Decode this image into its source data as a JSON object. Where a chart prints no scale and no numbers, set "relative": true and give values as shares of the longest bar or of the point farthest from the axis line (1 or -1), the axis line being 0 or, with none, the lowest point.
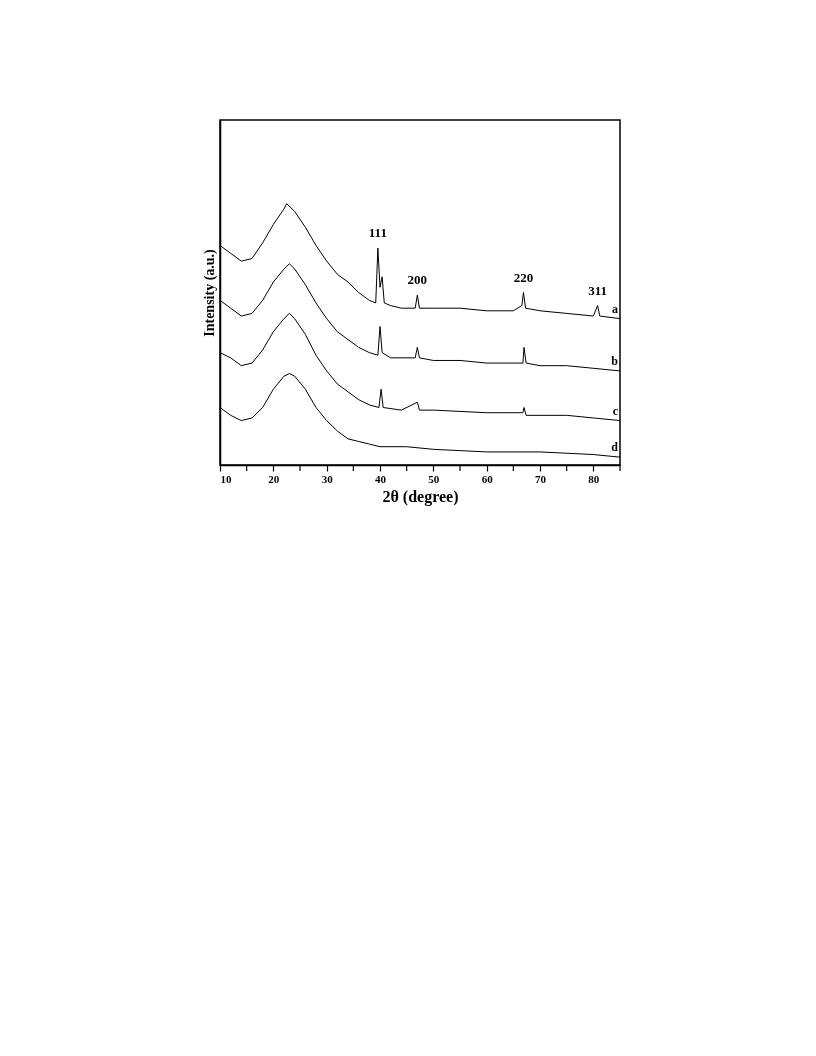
{
  "chart_data": {
    "type": "line",
    "xlabel": "2θ (degree)",
    "ylabel": "Intensity (a.u.)",
    "relative": true,
    "xlim": [
      10,
      85
    ],
    "xticks": [
      10,
      {
        "value": 15,
        "label": null
      },
      20,
      {
        "value": 25,
        "label": null
      },
      30,
      {
        "value": 35,
        "label": null
      },
      40,
      {
        "value": 45,
        "label": null
      },
      50,
      {
        "value": 55,
        "label": null
      },
      60,
      {
        "value": 65,
        "label": null
      },
      70,
      {
        "value": 75,
        "label": null
      },
      80,
      {
        "value": 85,
        "label": null
      }
    ],
    "grid": false,
    "legend": false,
    "marker": "none",
    "line_style": "solid",
    "series": [
      {
        "name": "a",
        "color": "#000000",
        "x": [
          10,
          12,
          14,
          16,
          18,
          20,
          22,
          22.5,
          24,
          26,
          28,
          30,
          32,
          34,
          36,
          38,
          39.2,
          39.6,
          40,
          40.4,
          40.8,
          42,
          44,
          46.6,
          47,
          47.4,
          50,
          55,
          60,
          65,
          66.6,
          66.9,
          67.3,
          70,
          75,
          80,
          80.8,
          81.2,
          85
        ],
        "values": [
          0.84,
          0.81,
          0.78,
          0.79,
          0.85,
          0.92,
          0.98,
          1.0,
          0.97,
          0.91,
          0.84,
          0.78,
          0.73,
          0.7,
          0.66,
          0.63,
          0.62,
          0.83,
          0.68,
          0.72,
          0.62,
          0.61,
          0.6,
          0.6,
          0.65,
          0.6,
          0.6,
          0.6,
          0.59,
          0.59,
          0.61,
          0.66,
          0.6,
          0.59,
          0.58,
          0.57,
          0.61,
          0.57,
          0.56
        ]
      },
      {
        "name": "b",
        "color": "#000000",
        "x": [
          10,
          12,
          14,
          16,
          18,
          20,
          22,
          23,
          24,
          26,
          28,
          30,
          32,
          34,
          36,
          38,
          39.6,
          40,
          40.4,
          42,
          46.6,
          47,
          47.4,
          50,
          55,
          60,
          65,
          66.8,
          67,
          67.4,
          70,
          75,
          80,
          85
        ],
        "values": [
          0.63,
          0.6,
          0.57,
          0.58,
          0.63,
          0.7,
          0.75,
          0.77,
          0.75,
          0.69,
          0.62,
          0.56,
          0.51,
          0.48,
          0.45,
          0.43,
          0.42,
          0.53,
          0.43,
          0.41,
          0.41,
          0.45,
          0.41,
          0.4,
          0.4,
          0.39,
          0.39,
          0.39,
          0.45,
          0.39,
          0.38,
          0.38,
          0.37,
          0.36
        ]
      },
      {
        "name": "c",
        "color": "#000000",
        "x": [
          10,
          12,
          14,
          16,
          18,
          20,
          22,
          23,
          24,
          26,
          28,
          30,
          32,
          34,
          36,
          38,
          39.8,
          40.2,
          40.6,
          44,
          47,
          47.4,
          50,
          60,
          66.8,
          67,
          67.4,
          70,
          75,
          80,
          85
        ],
        "values": [
          0.43,
          0.41,
          0.38,
          0.39,
          0.44,
          0.51,
          0.56,
          0.58,
          0.56,
          0.5,
          0.42,
          0.36,
          0.31,
          0.28,
          0.25,
          0.23,
          0.22,
          0.29,
          0.22,
          0.21,
          0.24,
          0.21,
          0.21,
          0.2,
          0.2,
          0.22,
          0.19,
          0.19,
          0.19,
          0.18,
          0.17
        ]
      },
      {
        "name": "d",
        "color": "#000000",
        "x": [
          10,
          12,
          14,
          16,
          18,
          20,
          22,
          23,
          24,
          26,
          28,
          30,
          32,
          34,
          36,
          38,
          40,
          45,
          50,
          60,
          70,
          80,
          85
        ],
        "values": [
          0.22,
          0.19,
          0.17,
          0.18,
          0.22,
          0.29,
          0.34,
          0.35,
          0.34,
          0.29,
          0.22,
          0.17,
          0.13,
          0.1,
          0.09,
          0.08,
          0.07,
          0.07,
          0.06,
          0.05,
          0.05,
          0.04,
          0.03
        ]
      }
    ],
    "annotations": [
      {
        "text": "111",
        "x": 39.6,
        "y": 0.83
      },
      {
        "text": "200",
        "x": 47,
        "y": 0.65
      },
      {
        "text": "220",
        "x": 66.9,
        "y": 0.66
      },
      {
        "text": "311",
        "x": 80.8,
        "y": 0.61
      }
    ]
  }
}
